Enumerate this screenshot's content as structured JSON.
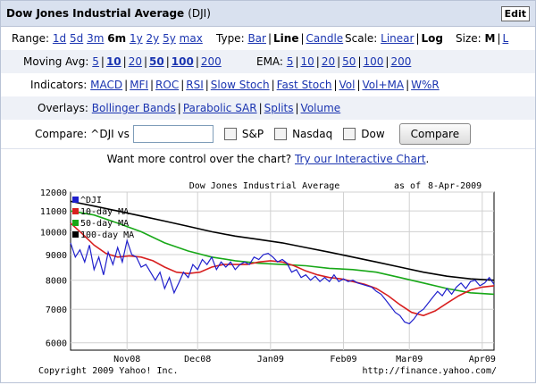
{
  "header": {
    "title": "Dow Jones Industrial Average",
    "symbol": "(DJI)",
    "edit_label": "Edit"
  },
  "range": {
    "label": "Range:",
    "options": [
      "1d",
      "5d",
      "3m",
      "6m",
      "1y",
      "2y",
      "5y",
      "max"
    ],
    "selected": "6m"
  },
  "type": {
    "label": "Type:",
    "options": [
      "Bar",
      "Line",
      "Candle"
    ],
    "selected": "Line"
  },
  "scale": {
    "label": "Scale:",
    "options": [
      "Linear",
      "Log"
    ],
    "selected": "Log"
  },
  "size": {
    "label": "Size:",
    "options": [
      "M",
      "L"
    ],
    "selected": "M"
  },
  "moving_avg": {
    "label": "Moving Avg:",
    "options": [
      "5",
      "10",
      "20",
      "50",
      "100",
      "200"
    ],
    "selected": [
      "10",
      "50",
      "100"
    ]
  },
  "ema": {
    "label": "EMA:",
    "options": [
      "5",
      "10",
      "20",
      "50",
      "100",
      "200"
    ]
  },
  "indicators": {
    "label": "Indicators:",
    "options": [
      "MACD",
      "MFI",
      "ROC",
      "RSI",
      "Slow Stoch",
      "Fast Stoch",
      "Vol",
      "Vol+MA",
      "W%R"
    ]
  },
  "overlays": {
    "label": "Overlays:",
    "options": [
      "Bollinger Bands",
      "Parabolic SAR",
      "Splits",
      "Volume"
    ]
  },
  "compare": {
    "label": "Compare: ^DJI vs",
    "value": "",
    "checks": [
      "S&P",
      "Nasdaq",
      "Dow"
    ],
    "button": "Compare"
  },
  "promo": {
    "text": "Want more control over the chart?",
    "link": "Try our Interactive Chart",
    "suffix": "."
  },
  "chart_data": {
    "type": "line",
    "title": "Dow Jones Industrial Average",
    "as_of_label": "as of",
    "as_of_date": "8-Apr-2009",
    "yscale": "log",
    "ylim": [
      5800,
      12000
    ],
    "yticks": [
      6000,
      7000,
      8000,
      9000,
      10000,
      11000,
      12000
    ],
    "xlim": [
      0,
      180
    ],
    "xticks": [
      {
        "label": "Nov08",
        "x": 24
      },
      {
        "label": "Dec08",
        "x": 54
      },
      {
        "label": "Jan09",
        "x": 85
      },
      {
        "label": "Feb09",
        "x": 116
      },
      {
        "label": "Mar09",
        "x": 144
      },
      {
        "label": "Apr09",
        "x": 175
      }
    ],
    "legend_position": "top-left",
    "grid": true,
    "footer_left": "Copyright 2009 Yahoo! Inc.",
    "footer_right": "http://finance.yahoo.com/",
    "series": [
      {
        "name": "^DJI",
        "color": "#1f1fcc",
        "x": [
          0,
          2,
          4,
          6,
          8,
          10,
          12,
          14,
          16,
          18,
          20,
          22,
          24,
          26,
          28,
          30,
          32,
          34,
          36,
          38,
          40,
          42,
          44,
          46,
          48,
          50,
          52,
          54,
          56,
          58,
          60,
          62,
          64,
          66,
          68,
          70,
          72,
          74,
          76,
          78,
          80,
          82,
          84,
          86,
          88,
          90,
          92,
          94,
          96,
          98,
          100,
          102,
          104,
          106,
          108,
          110,
          112,
          114,
          116,
          118,
          120,
          122,
          124,
          126,
          128,
          130,
          132,
          134,
          136,
          138,
          140,
          142,
          144,
          146,
          148,
          150,
          152,
          154,
          156,
          158,
          160,
          162,
          164,
          166,
          168,
          170,
          172,
          174,
          176,
          178,
          180
        ],
        "values": [
          9500,
          8900,
          9200,
          8700,
          9400,
          8400,
          8900,
          8200,
          9100,
          8600,
          9300,
          8700,
          9600,
          9000,
          8900,
          8500,
          8600,
          8300,
          8000,
          8300,
          7700,
          8100,
          7550,
          7900,
          8300,
          8100,
          8600,
          8400,
          8800,
          8600,
          8900,
          8400,
          8700,
          8500,
          8700,
          8400,
          8600,
          8700,
          8600,
          8900,
          8800,
          9000,
          9050,
          8900,
          8700,
          8800,
          8650,
          8300,
          8400,
          8100,
          8200,
          8000,
          8150,
          7950,
          8100,
          7950,
          8200,
          7950,
          8050,
          7950,
          8000,
          7900,
          7850,
          7800,
          7750,
          7600,
          7500,
          7300,
          7100,
          6900,
          6800,
          6600,
          6550,
          6700,
          6900,
          7000,
          7200,
          7400,
          7600,
          7450,
          7700,
          7500,
          7750,
          7900,
          7700,
          7950,
          8000,
          7800,
          7900,
          8100,
          7850
        ]
      },
      {
        "name": "10-day MA",
        "color": "#d82020",
        "x": [
          0,
          5,
          10,
          15,
          20,
          25,
          30,
          35,
          40,
          45,
          50,
          55,
          60,
          65,
          70,
          75,
          80,
          85,
          90,
          95,
          100,
          105,
          110,
          115,
          120,
          125,
          130,
          135,
          140,
          145,
          150,
          155,
          160,
          165,
          170,
          175,
          180
        ],
        "values": [
          10400,
          9900,
          9400,
          9050,
          8900,
          8950,
          8900,
          8750,
          8500,
          8300,
          8250,
          8300,
          8500,
          8600,
          8600,
          8600,
          8700,
          8750,
          8700,
          8550,
          8350,
          8200,
          8100,
          8050,
          7950,
          7850,
          7700,
          7450,
          7150,
          6900,
          6800,
          6950,
          7200,
          7450,
          7650,
          7750,
          7800
        ]
      },
      {
        "name": "50-day MA",
        "color": "#18a818",
        "x": [
          0,
          10,
          20,
          30,
          40,
          50,
          60,
          70,
          80,
          90,
          100,
          110,
          120,
          130,
          140,
          150,
          160,
          170,
          180
        ],
        "values": [
          11000,
          10800,
          10400,
          10000,
          9500,
          9150,
          8900,
          8750,
          8650,
          8600,
          8550,
          8450,
          8400,
          8300,
          8100,
          7900,
          7700,
          7550,
          7500
        ]
      },
      {
        "name": "100-day MA",
        "color": "#000000",
        "x": [
          0,
          10,
          20,
          30,
          40,
          50,
          60,
          70,
          80,
          90,
          100,
          110,
          120,
          130,
          140,
          150,
          160,
          170,
          180
        ],
        "values": [
          11500,
          11250,
          11000,
          10750,
          10500,
          10250,
          10000,
          9800,
          9650,
          9500,
          9300,
          9100,
          8900,
          8700,
          8500,
          8300,
          8150,
          8050,
          8000
        ]
      }
    ]
  }
}
